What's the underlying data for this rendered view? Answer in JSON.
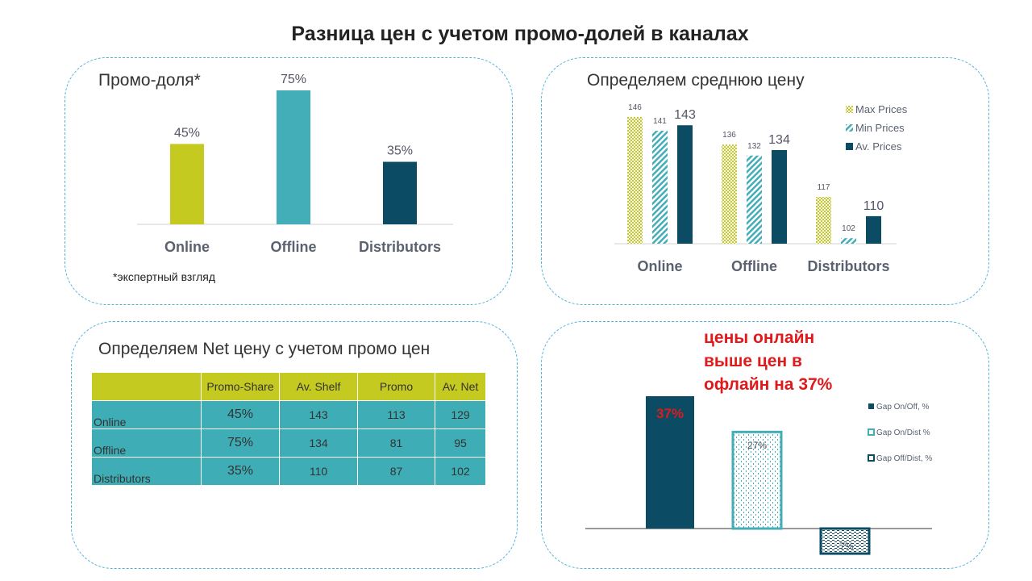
{
  "title": "Разница цен с учетом промо-долей в каналах",
  "colors": {
    "lime": "#c4ca20",
    "teal": "#43adb8",
    "navy": "#0b4b63",
    "red": "#e0191b",
    "border": "#4fb3d9"
  },
  "promo_panel": {
    "title": "Промо-доля*",
    "footnote": "*экспертный взгляд"
  },
  "price_panel": {
    "title": "Определяем среднюю цену"
  },
  "net_panel": {
    "title": "Определяем Net цену с учетом промо цен",
    "headers": [
      "",
      "Promo-Share",
      "Av. Shelf",
      "Promo",
      "Av. Net"
    ],
    "rows": [
      {
        "name": "Online",
        "share": "45%",
        "shelf": "143",
        "promo": "113",
        "net": "129"
      },
      {
        "name": "Offline",
        "share": "75%",
        "shelf": "134",
        "promo": "81",
        "net": "95"
      },
      {
        "name": "Distributors",
        "share": "35%",
        "shelf": "110",
        "promo": "87",
        "net": "102"
      }
    ]
  },
  "gap_panel": {
    "note": "цены онлайн выше цен в офлайн на 37%"
  },
  "chart_data": [
    {
      "type": "bar",
      "title": "Промо-доля*",
      "categories": [
        "Online",
        "Offline",
        "Distributors"
      ],
      "values": [
        45,
        75,
        35
      ],
      "value_labels": [
        "45%",
        "75%",
        "35%"
      ],
      "ylim": [
        0,
        75
      ]
    },
    {
      "type": "bar",
      "title": "Определяем среднюю цену",
      "categories": [
        "Online",
        "Offline",
        "Distributors"
      ],
      "series": [
        {
          "name": "Max Prices",
          "values": [
            146,
            136,
            117
          ]
        },
        {
          "name": "Min Prices",
          "values": [
            141,
            132,
            102
          ]
        },
        {
          "name": "Av. Prices",
          "values": [
            143,
            134,
            110
          ]
        }
      ],
      "ylim": [
        100,
        146
      ],
      "legend": "top-right"
    },
    {
      "type": "bar",
      "series": [
        {
          "name": "Gap On/Off, %",
          "values": [
            37
          ]
        },
        {
          "name": "Gap On/Dist %",
          "values": [
            27
          ]
        },
        {
          "name": "Gap Off/Dist, %",
          "values": [
            -7
          ]
        }
      ],
      "value_labels": [
        "37%",
        "27%",
        "-7%"
      ],
      "legend": "right"
    }
  ]
}
